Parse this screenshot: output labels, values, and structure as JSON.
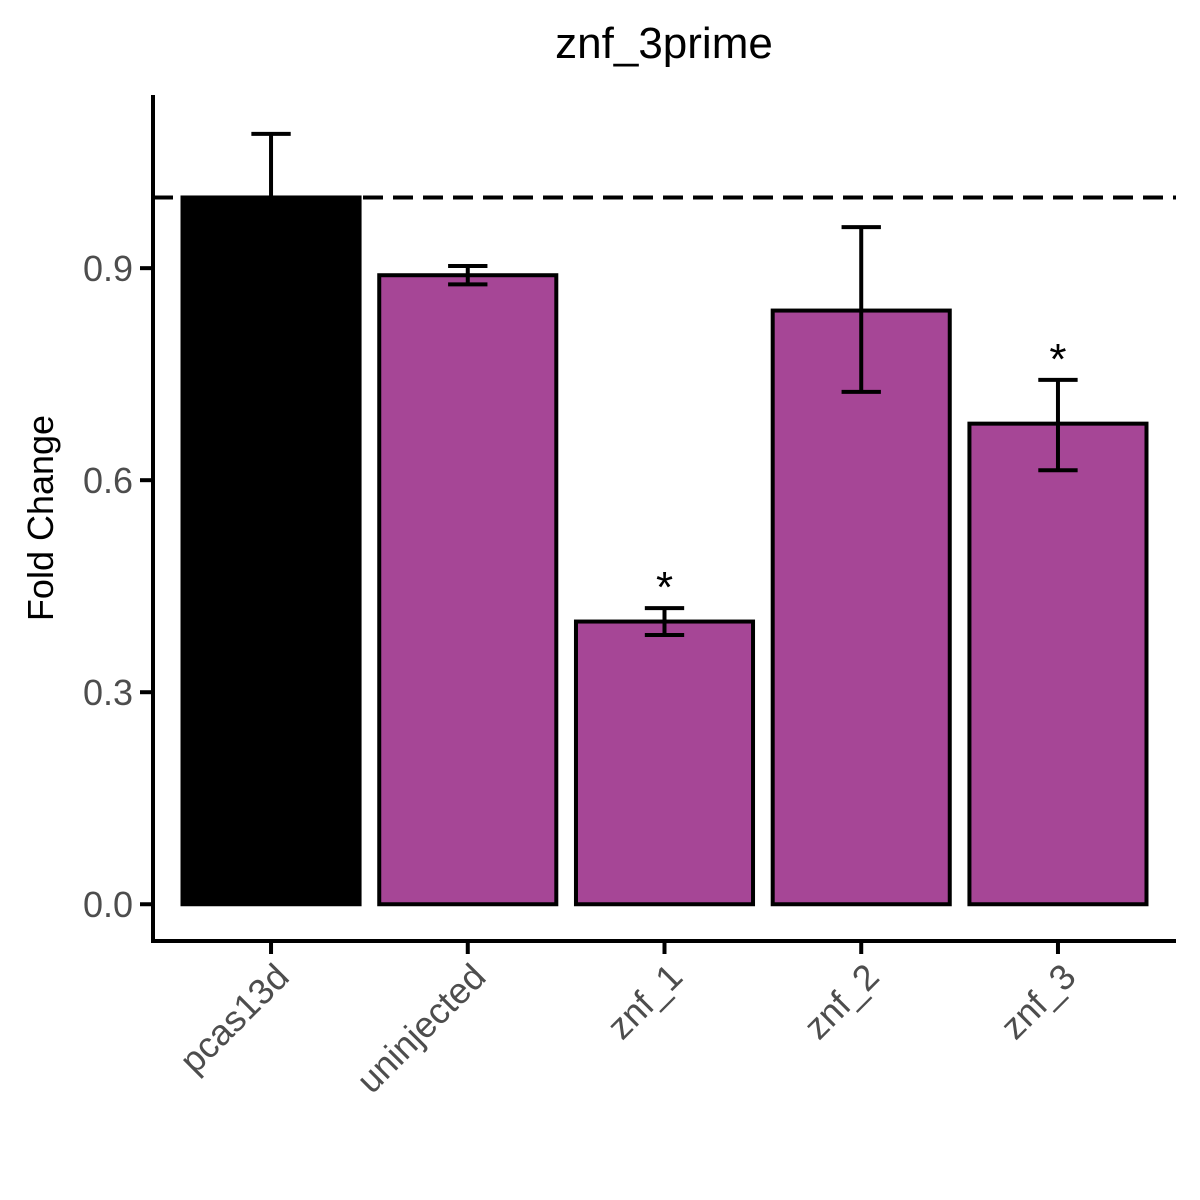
{
  "chart_data": {
    "type": "bar",
    "title": "znf_3prime",
    "xlabel": "",
    "ylabel": "Fold Change",
    "categories": [
      "pcas13d",
      "uninjected",
      "znf_1",
      "znf_2",
      "znf_3"
    ],
    "values": [
      1.0,
      0.89,
      0.4,
      0.84,
      0.68
    ],
    "error_low": [
      1.0,
      0.877,
      0.381,
      0.725,
      0.614
    ],
    "error_high": [
      1.09,
      0.903,
      0.419,
      0.958,
      0.742
    ],
    "significance": [
      "",
      "",
      "*",
      "",
      "*"
    ],
    "bar_colors": [
      "#000000",
      "#a64696",
      "#a64696",
      "#a64696",
      "#a64696"
    ],
    "reference_line": 1.0,
    "ylim": [
      -0.052,
      1.145
    ],
    "yticks": [
      0.0,
      0.3,
      0.6,
      0.9
    ],
    "ytick_labels": [
      "0.0",
      "0.3",
      "0.6",
      "0.9"
    ],
    "grid": false,
    "legend": "none"
  }
}
